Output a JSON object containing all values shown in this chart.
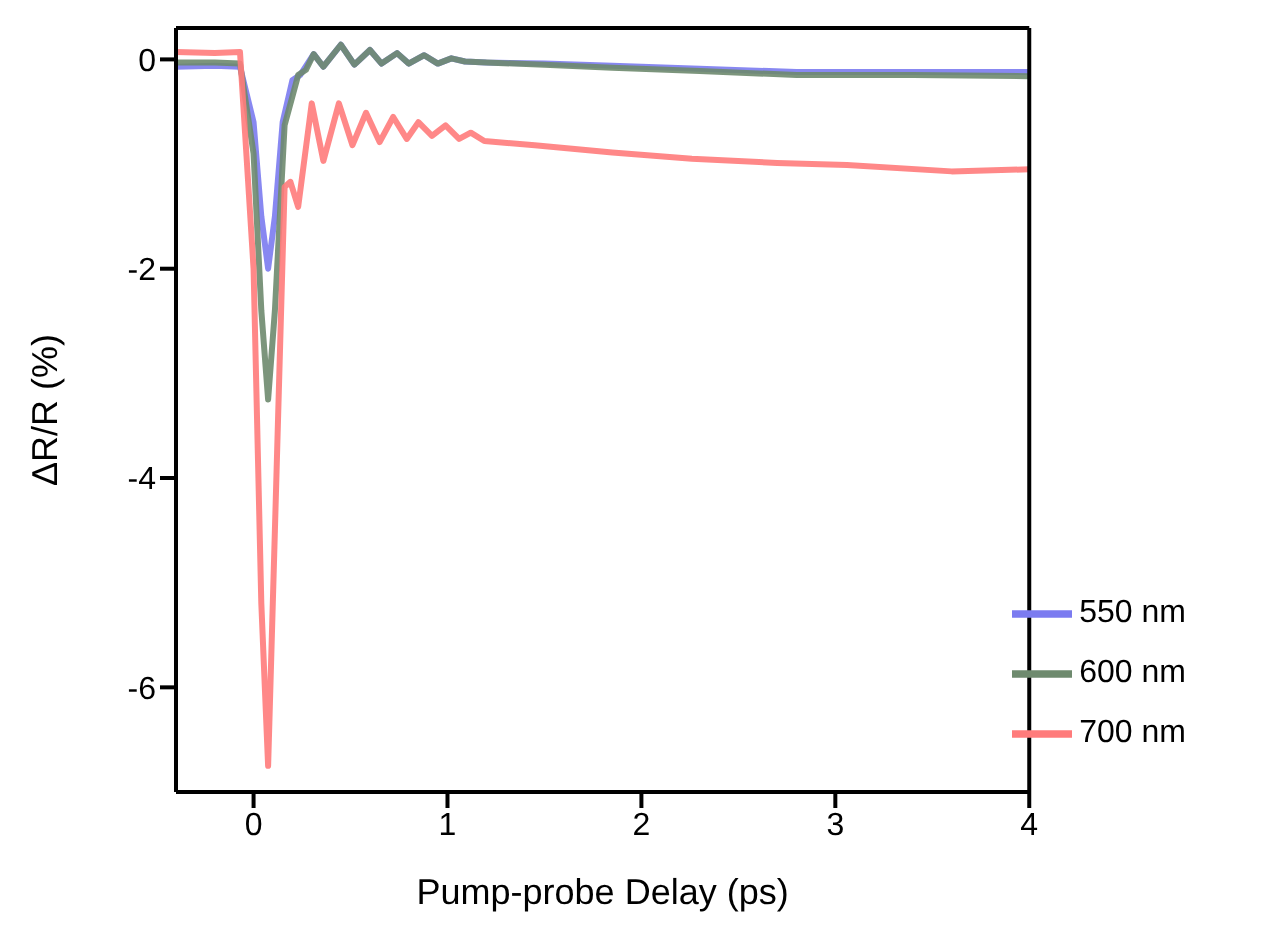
{
  "chart_data": {
    "type": "line",
    "xlabel": "Pump-probe Delay (ps)",
    "ylabel": "ΔR/R (%)",
    "xlim": [
      -0.4,
      4
    ],
    "ylim": [
      -7,
      0.3
    ],
    "xticks": [
      0,
      1,
      2,
      3,
      4
    ],
    "yticks": [
      -6,
      -4,
      -2,
      0
    ],
    "grid": false,
    "legend": "bottom right",
    "marker": "none",
    "line_style": "solid",
    "series": [
      {
        "name": "550 nm",
        "color": "#7b7bf0",
        "x": [
          -0.4,
          -0.2,
          -0.07,
          0.0,
          0.04,
          0.075,
          0.11,
          0.15,
          0.2,
          0.24,
          0.31,
          0.36,
          0.45,
          0.52,
          0.6,
          0.66,
          0.74,
          0.8,
          0.88,
          0.95,
          1.02,
          1.09,
          1.2,
          1.5,
          1.85,
          2.3,
          2.8,
          3.4,
          4.0
        ],
        "values": [
          -0.07,
          -0.06,
          -0.07,
          -0.6,
          -1.5,
          -2.0,
          -1.5,
          -0.6,
          -0.2,
          -0.15,
          0.05,
          -0.07,
          0.14,
          -0.05,
          0.09,
          -0.04,
          0.06,
          -0.04,
          0.04,
          -0.04,
          0.01,
          -0.02,
          -0.03,
          -0.04,
          -0.06,
          -0.09,
          -0.12,
          -0.12,
          -0.12
        ]
      },
      {
        "name": "600 nm",
        "color": "#6e8a6e",
        "x": [
          -0.4,
          -0.2,
          -0.07,
          0.0,
          0.04,
          0.075,
          0.11,
          0.16,
          0.23,
          0.27,
          0.31,
          0.36,
          0.45,
          0.52,
          0.6,
          0.66,
          0.74,
          0.8,
          0.88,
          0.95,
          1.02,
          1.09,
          1.2,
          1.5,
          1.85,
          2.3,
          2.8,
          3.4,
          4.0
        ],
        "values": [
          -0.03,
          -0.03,
          -0.04,
          -0.9,
          -2.4,
          -3.25,
          -2.4,
          -0.63,
          -0.15,
          -0.1,
          0.05,
          -0.07,
          0.14,
          -0.05,
          0.09,
          -0.04,
          0.06,
          -0.04,
          0.04,
          -0.04,
          0.01,
          -0.02,
          -0.03,
          -0.05,
          -0.08,
          -0.11,
          -0.15,
          -0.15,
          -0.16
        ]
      },
      {
        "name": "700 nm",
        "color": "#ff7b7b",
        "x": [
          -0.4,
          -0.2,
          -0.07,
          0.0,
          0.04,
          0.075,
          0.11,
          0.16,
          0.19,
          0.23,
          0.3,
          0.36,
          0.44,
          0.51,
          0.58,
          0.65,
          0.72,
          0.79,
          0.85,
          0.92,
          0.99,
          1.06,
          1.12,
          1.19,
          1.45,
          1.85,
          2.26,
          2.7,
          3.06,
          3.6,
          4.0
        ],
        "values": [
          0.07,
          0.06,
          0.07,
          -2.0,
          -5.2,
          -6.75,
          -4.5,
          -1.22,
          -1.17,
          -1.41,
          -0.42,
          -0.97,
          -0.42,
          -0.82,
          -0.51,
          -0.79,
          -0.55,
          -0.76,
          -0.6,
          -0.73,
          -0.63,
          -0.76,
          -0.7,
          -0.78,
          -0.82,
          -0.89,
          -0.95,
          -0.99,
          -1.01,
          -1.07,
          -1.05
        ]
      }
    ]
  }
}
